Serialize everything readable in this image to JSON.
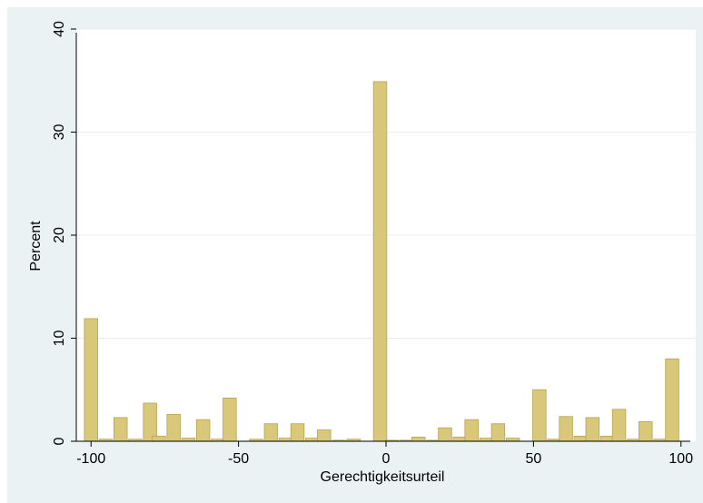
{
  "chart_data": {
    "type": "bar",
    "xlabel": "Gerechtigkeitsurteil",
    "ylabel": "Percent",
    "xlim": [
      -105,
      105
    ],
    "ylim": [
      0,
      40
    ],
    "xticks": [
      -100,
      -50,
      0,
      50,
      100
    ],
    "yticks": [
      0,
      10,
      20,
      30,
      40
    ],
    "grid": true,
    "bin_width": 5,
    "bars": [
      {
        "x": -100,
        "y": 11.9
      },
      {
        "x": -95,
        "y": 0.2
      },
      {
        "x": -90,
        "y": 2.3
      },
      {
        "x": -85,
        "y": 0.2
      },
      {
        "x": -80,
        "y": 3.7
      },
      {
        "x": -77,
        "y": 0.5
      },
      {
        "x": -72,
        "y": 2.6
      },
      {
        "x": -67,
        "y": 0.3
      },
      {
        "x": -62,
        "y": 2.1
      },
      {
        "x": -57,
        "y": 0.2
      },
      {
        "x": -53,
        "y": 4.2
      },
      {
        "x": -44,
        "y": 0.2
      },
      {
        "x": -39,
        "y": 1.7
      },
      {
        "x": -34,
        "y": 0.3
      },
      {
        "x": -30,
        "y": 1.7
      },
      {
        "x": -25,
        "y": 0.3
      },
      {
        "x": -21,
        "y": 1.1
      },
      {
        "x": -16,
        "y": 0.1
      },
      {
        "x": -11,
        "y": 0.2
      },
      {
        "x": -2,
        "y": 34.9
      },
      {
        "x": 2,
        "y": 0.1
      },
      {
        "x": 7,
        "y": 0.1
      },
      {
        "x": 11,
        "y": 0.4
      },
      {
        "x": 16,
        "y": 0.1
      },
      {
        "x": 20,
        "y": 1.3
      },
      {
        "x": 25,
        "y": 0.4
      },
      {
        "x": 29,
        "y": 2.1
      },
      {
        "x": 34,
        "y": 0.3
      },
      {
        "x": 38,
        "y": 1.7
      },
      {
        "x": 43,
        "y": 0.3
      },
      {
        "x": 52,
        "y": 5.0
      },
      {
        "x": 57,
        "y": 0.2
      },
      {
        "x": 61,
        "y": 2.4
      },
      {
        "x": 66,
        "y": 0.5
      },
      {
        "x": 70,
        "y": 2.3
      },
      {
        "x": 75,
        "y": 0.5
      },
      {
        "x": 79,
        "y": 3.1
      },
      {
        "x": 84,
        "y": 0.2
      },
      {
        "x": 88,
        "y": 1.9
      },
      {
        "x": 93,
        "y": 0.2
      },
      {
        "x": 97,
        "y": 8.0
      }
    ],
    "colors": {
      "bar_fill": "#d9c77a",
      "bar_stroke": "#b8a24e",
      "plot_bg": "#ffffff",
      "outer_bg": "#eaf2f3",
      "grid": "#e8eef0",
      "axis": "#000000"
    }
  }
}
